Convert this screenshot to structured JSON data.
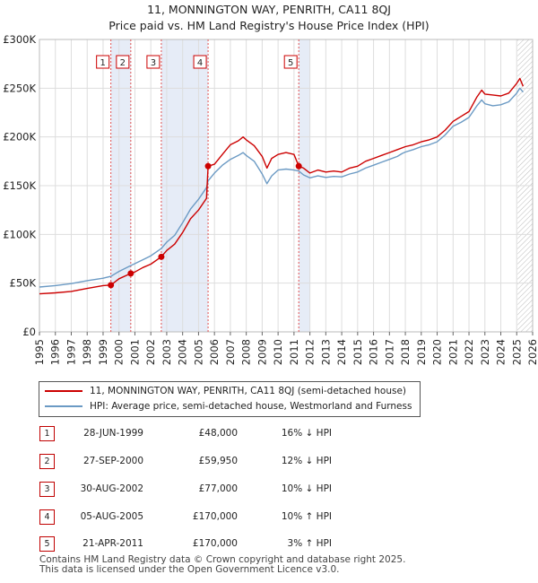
{
  "title": {
    "line1": "11, MONNINGTON WAY, PENRITH, CA11 8QJ",
    "line2": "Price paid vs. HM Land Registry's House Price Index (HPI)"
  },
  "chart_data": {
    "type": "line",
    "title": "11, MONNINGTON WAY, PENRITH, CA11 8QJ — Price paid vs. HM Land Registry's House Price Index (HPI)",
    "xlabel": "",
    "ylabel": "",
    "xlim": [
      1995,
      2026
    ],
    "ylim": [
      0,
      300000
    ],
    "x_ticks": [
      1995,
      1996,
      1997,
      1998,
      1999,
      2000,
      2001,
      2002,
      2003,
      2004,
      2005,
      2006,
      2007,
      2008,
      2009,
      2010,
      2011,
      2012,
      2013,
      2014,
      2015,
      2016,
      2017,
      2018,
      2019,
      2020,
      2021,
      2022,
      2023,
      2024,
      2025,
      2026
    ],
    "y_ticks": [
      {
        "value": 0,
        "label": "£0"
      },
      {
        "value": 50000,
        "label": "£50K"
      },
      {
        "value": 100000,
        "label": "£100K"
      },
      {
        "value": 150000,
        "label": "£150K"
      },
      {
        "value": 200000,
        "label": "£200K"
      },
      {
        "value": 250000,
        "label": "£250K"
      },
      {
        "value": 300000,
        "label": "£300K"
      }
    ],
    "grid": true,
    "shaded_spans": [
      {
        "from": 1999.49,
        "to": 2000.74
      },
      {
        "from": 2002.66,
        "to": 2005.6
      },
      {
        "from": 2011.3,
        "to": 2012.0
      }
    ],
    "future_hatch_from": 2025.05,
    "series": [
      {
        "name": "11, MONNINGTON WAY, PENRITH, CA11 8QJ (semi-detached house)",
        "color": "#cc0000",
        "points": [
          [
            1995.0,
            39000
          ],
          [
            1996.0,
            40000
          ],
          [
            1997.0,
            41500
          ],
          [
            1998.0,
            44500
          ],
          [
            1999.0,
            47500
          ],
          [
            1999.49,
            48000
          ],
          [
            2000.0,
            54500
          ],
          [
            2000.74,
            59950
          ],
          [
            2001.0,
            61500
          ],
          [
            2001.5,
            66000
          ],
          [
            2002.0,
            69500
          ],
          [
            2002.66,
            77000
          ],
          [
            2003.0,
            83500
          ],
          [
            2003.5,
            90000
          ],
          [
            2004.0,
            102000
          ],
          [
            2004.5,
            116000
          ],
          [
            2005.0,
            125000
          ],
          [
            2005.5,
            137000
          ],
          [
            2005.6,
            170000
          ],
          [
            2006.0,
            172000
          ],
          [
            2006.5,
            182000
          ],
          [
            2007.0,
            192000
          ],
          [
            2007.5,
            196000
          ],
          [
            2007.8,
            200000
          ],
          [
            2008.0,
            197000
          ],
          [
            2008.5,
            191000
          ],
          [
            2009.0,
            180000
          ],
          [
            2009.3,
            168000
          ],
          [
            2009.6,
            178000
          ],
          [
            2010.0,
            182000
          ],
          [
            2010.5,
            184000
          ],
          [
            2011.0,
            182000
          ],
          [
            2011.3,
            170000
          ],
          [
            2011.6,
            168000
          ],
          [
            2012.0,
            163000
          ],
          [
            2012.5,
            166000
          ],
          [
            2013.0,
            164000
          ],
          [
            2013.5,
            165000
          ],
          [
            2014.0,
            164000
          ],
          [
            2014.5,
            168000
          ],
          [
            2015.0,
            170000
          ],
          [
            2015.5,
            175000
          ],
          [
            2016.0,
            178000
          ],
          [
            2016.5,
            181000
          ],
          [
            2017.0,
            184000
          ],
          [
            2017.5,
            187000
          ],
          [
            2018.0,
            190000
          ],
          [
            2018.5,
            192000
          ],
          [
            2019.0,
            195000
          ],
          [
            2019.5,
            197000
          ],
          [
            2020.0,
            200000
          ],
          [
            2020.5,
            207000
          ],
          [
            2021.0,
            216000
          ],
          [
            2021.5,
            221000
          ],
          [
            2022.0,
            226000
          ],
          [
            2022.5,
            241000
          ],
          [
            2022.8,
            248000
          ],
          [
            2023.0,
            244000
          ],
          [
            2023.5,
            243000
          ],
          [
            2024.0,
            242000
          ],
          [
            2024.5,
            245000
          ],
          [
            2025.0,
            255000
          ],
          [
            2025.2,
            260000
          ],
          [
            2025.4,
            252000
          ]
        ]
      },
      {
        "name": "HPI: Average price, semi-detached house, Westmorland and Furness",
        "color": "#6b9ac4",
        "points": [
          [
            1995.0,
            46000
          ],
          [
            1996.0,
            47500
          ],
          [
            1997.0,
            49500
          ],
          [
            1998.0,
            52500
          ],
          [
            1999.0,
            55000
          ],
          [
            1999.49,
            57000
          ],
          [
            2000.0,
            62000
          ],
          [
            2000.74,
            68000
          ],
          [
            2001.0,
            70000
          ],
          [
            2001.5,
            74000
          ],
          [
            2002.0,
            78000
          ],
          [
            2002.66,
            85500
          ],
          [
            2003.0,
            92000
          ],
          [
            2003.5,
            99000
          ],
          [
            2004.0,
            112000
          ],
          [
            2004.5,
            126000
          ],
          [
            2005.0,
            136000
          ],
          [
            2005.5,
            148000
          ],
          [
            2005.6,
            155000
          ],
          [
            2006.0,
            163000
          ],
          [
            2006.5,
            171000
          ],
          [
            2007.0,
            177000
          ],
          [
            2007.5,
            181000
          ],
          [
            2007.8,
            184000
          ],
          [
            2008.0,
            181000
          ],
          [
            2008.5,
            175000
          ],
          [
            2009.0,
            162000
          ],
          [
            2009.3,
            152000
          ],
          [
            2009.6,
            160000
          ],
          [
            2010.0,
            166000
          ],
          [
            2010.5,
            167000
          ],
          [
            2011.0,
            166000
          ],
          [
            2011.3,
            165000
          ],
          [
            2011.6,
            161000
          ],
          [
            2012.0,
            158000
          ],
          [
            2012.5,
            160000
          ],
          [
            2013.0,
            158500
          ],
          [
            2013.5,
            159500
          ],
          [
            2014.0,
            159000
          ],
          [
            2014.5,
            162000
          ],
          [
            2015.0,
            164000
          ],
          [
            2015.5,
            168000
          ],
          [
            2016.0,
            171000
          ],
          [
            2016.5,
            174000
          ],
          [
            2017.0,
            177000
          ],
          [
            2017.5,
            180000
          ],
          [
            2017.8,
            183000
          ],
          [
            2018.0,
            184500
          ],
          [
            2018.5,
            187000
          ],
          [
            2019.0,
            190000
          ],
          [
            2019.5,
            192000
          ],
          [
            2020.0,
            195000
          ],
          [
            2020.5,
            202000
          ],
          [
            2021.0,
            211000
          ],
          [
            2021.5,
            215000
          ],
          [
            2022.0,
            220000
          ],
          [
            2022.5,
            232000
          ],
          [
            2022.8,
            238000
          ],
          [
            2023.0,
            234000
          ],
          [
            2023.5,
            232000
          ],
          [
            2024.0,
            233000
          ],
          [
            2024.5,
            236000
          ],
          [
            2025.0,
            245000
          ],
          [
            2025.2,
            250000
          ],
          [
            2025.4,
            246000
          ]
        ]
      }
    ],
    "sale_markers": [
      {
        "label": "1",
        "x": 1999.49,
        "value": 48000
      },
      {
        "label": "2",
        "x": 2000.74,
        "value": 59950
      },
      {
        "label": "3",
        "x": 2002.66,
        "value": 77000
      },
      {
        "label": "4",
        "x": 2005.6,
        "value": 170000
      },
      {
        "label": "5",
        "x": 2011.3,
        "value": 170000
      }
    ]
  },
  "legend": {
    "property_label": "11, MONNINGTON WAY, PENRITH, CA11 8QJ (semi-detached house)",
    "hpi_label": "HPI: Average price, semi-detached house, Westmorland and Furness",
    "property_color": "#cc0000",
    "hpi_color": "#6b9ac4"
  },
  "sales": [
    {
      "num": "1",
      "date": "28-JUN-1999",
      "price": "£48,000",
      "hpi": "16% ↓ HPI"
    },
    {
      "num": "2",
      "date": "27-SEP-2000",
      "price": "£59,950",
      "hpi": "12% ↓ HPI"
    },
    {
      "num": "3",
      "date": "30-AUG-2002",
      "price": "£77,000",
      "hpi": "10% ↓ HPI"
    },
    {
      "num": "4",
      "date": "05-AUG-2005",
      "price": "£170,000",
      "hpi": "10% ↑ HPI"
    },
    {
      "num": "5",
      "date": "21-APR-2011",
      "price": "£170,000",
      "hpi": "3% ↑ HPI"
    }
  ],
  "footer": {
    "line1": "Contains HM Land Registry data © Crown copyright and database right 2025.",
    "line2": "This data is licensed under the Open Government Licence v3.0."
  }
}
